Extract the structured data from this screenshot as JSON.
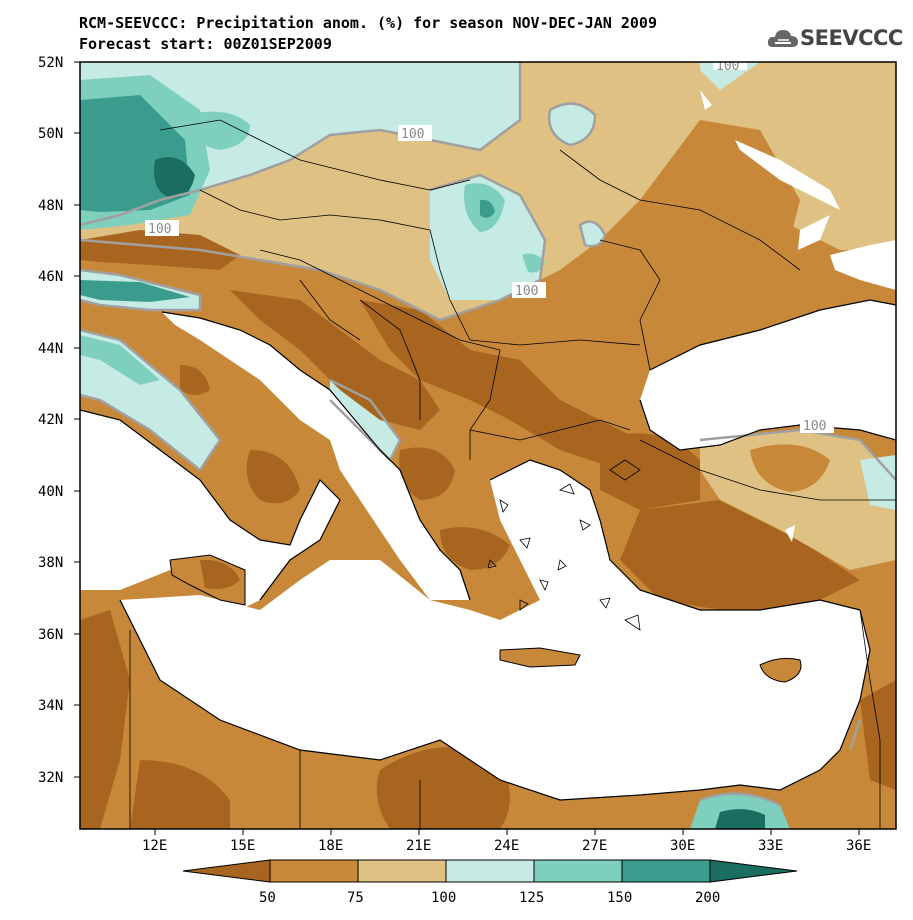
{
  "title": {
    "line1": "RCM-SEEVCCC: Precipitation anom. (%) for season NOV-DEC-JAN 2009",
    "line2": "Forecast start: 00Z01SEP2009"
  },
  "logo": {
    "text": "SEEVCCC",
    "icon": "cloud-icon"
  },
  "map": {
    "lat_ticks": [
      "52N",
      "50N",
      "48N",
      "46N",
      "44N",
      "42N",
      "40N",
      "38N",
      "36N",
      "34N",
      "32N"
    ],
    "lon_ticks": [
      "12E",
      "15E",
      "18E",
      "21E",
      "24E",
      "27E",
      "30E",
      "33E",
      "36E"
    ],
    "contour_label": "100",
    "colors": {
      "lt50": "#a8651f",
      "50_75": "#c8883a",
      "75_100": "#dfc184",
      "100_125": "#c5ebe4",
      "125_150": "#7fcfbe",
      "150_200": "#3a9c8d",
      "gt200": "#1a6e60",
      "sea": "#ffffff"
    }
  },
  "colorbar": {
    "labels": [
      "50",
      "75",
      "100",
      "125",
      "150",
      "200"
    ]
  }
}
